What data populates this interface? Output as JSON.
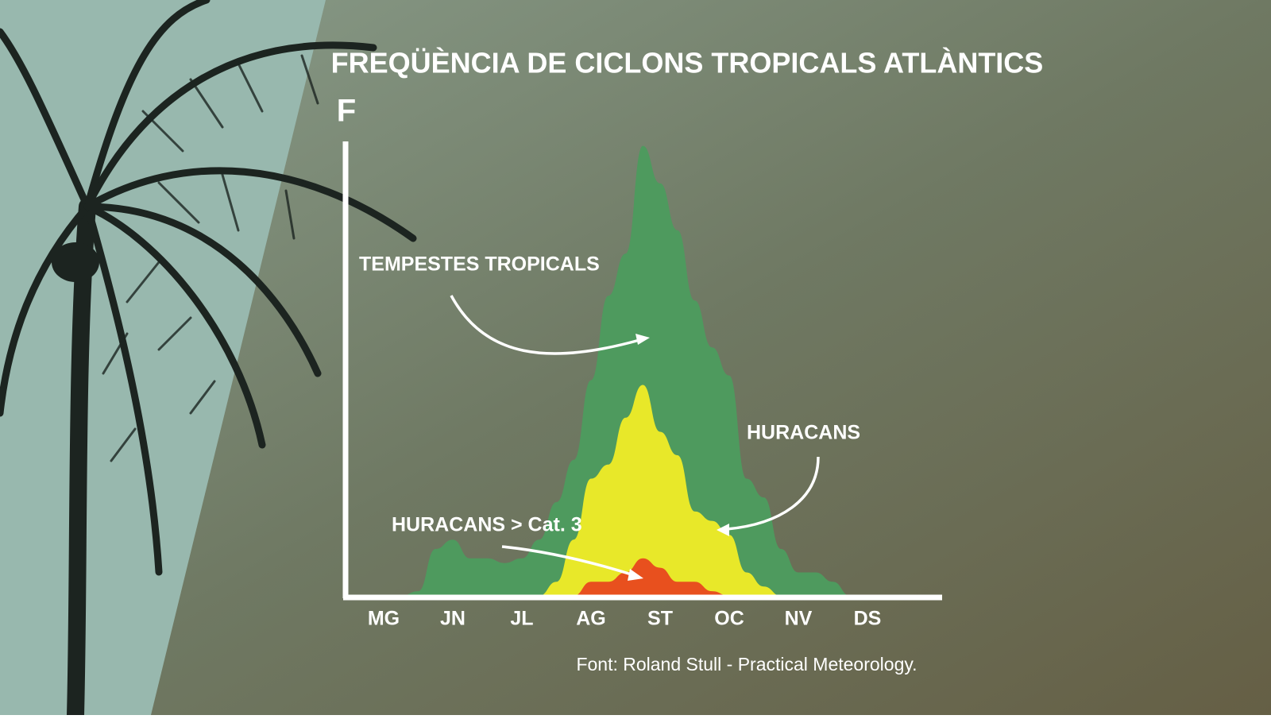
{
  "chart_data": {
    "type": "area",
    "title": "FREQÜÈNCIA DE CICLONS TROPICALS ATLÀNTICS",
    "y_label": "F",
    "source": "Font: Roland Stull - Practical Meteorology.",
    "categories": [
      null,
      null,
      "MG",
      null,
      null,
      null,
      "JN",
      null,
      null,
      null,
      "JL",
      null,
      null,
      null,
      "AG",
      null,
      null,
      null,
      "ST",
      null,
      null,
      null,
      "OC",
      null,
      null,
      null,
      "NV",
      null,
      null,
      null,
      "DS",
      null,
      null,
      null
    ],
    "ylim": [
      0,
      100
    ],
    "series": [
      {
        "name": "TEMPESTES TROPICALS",
        "color": "#4e9a5e",
        "values": [
          0,
          0,
          0,
          0,
          1,
          10,
          12,
          8,
          8,
          7,
          8,
          12,
          20,
          29,
          46,
          64,
          73,
          96,
          88,
          78,
          63,
          53,
          47,
          25,
          21,
          10,
          5,
          5,
          3,
          0,
          0,
          0,
          0,
          0
        ]
      },
      {
        "name": "HURACANS",
        "color": "#e8e829",
        "values": [
          0,
          0,
          0,
          0,
          0,
          0,
          0,
          0,
          0,
          0,
          0,
          0,
          3,
          12,
          25,
          28,
          38,
          45,
          35,
          30,
          18,
          16,
          13,
          5,
          2,
          0,
          0,
          0,
          0,
          0,
          0,
          0,
          0,
          0
        ]
      },
      {
        "name": "HURACANS > Cat. 3",
        "color": "#e8501e",
        "values": [
          0,
          0,
          0,
          0,
          0,
          0,
          0,
          0,
          0,
          0,
          0,
          0,
          0,
          0,
          3,
          3,
          5,
          8,
          6,
          3,
          3,
          1,
          0,
          0,
          0,
          0,
          0,
          0,
          0,
          0,
          0,
          0,
          0,
          0
        ]
      }
    ]
  }
}
